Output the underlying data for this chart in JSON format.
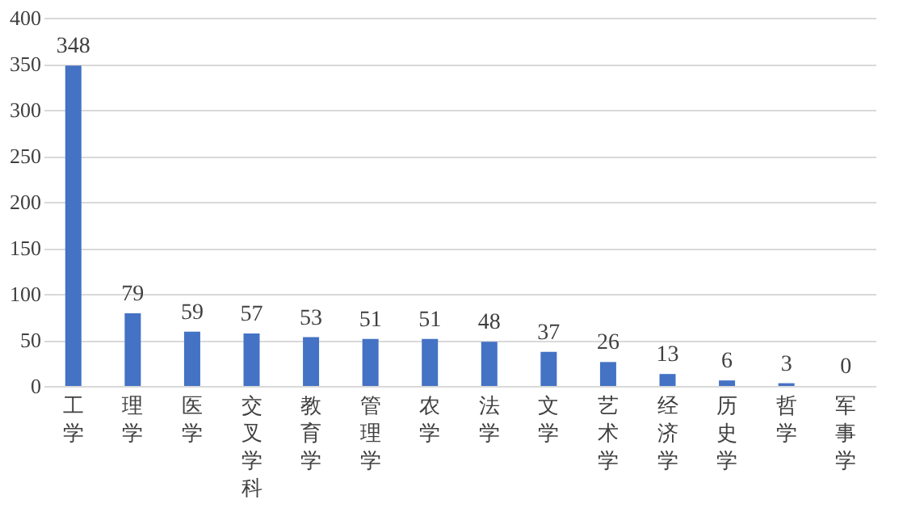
{
  "chart_data": {
    "type": "bar",
    "categories": [
      "工学",
      "理学",
      "医学",
      "交叉学科",
      "教育学",
      "管理学",
      "农学",
      "法学",
      "文学",
      "艺术学",
      "经济学",
      "历史学",
      "哲学",
      "军事学"
    ],
    "values": [
      348,
      79,
      59,
      57,
      53,
      51,
      51,
      48,
      37,
      26,
      13,
      6,
      3,
      0
    ],
    "color": "#4472c4",
    "ylim": [
      0,
      400
    ],
    "yticks": [
      0,
      50,
      100,
      150,
      200,
      250,
      300,
      350,
      400
    ],
    "grid": "y",
    "data_labels": true
  }
}
